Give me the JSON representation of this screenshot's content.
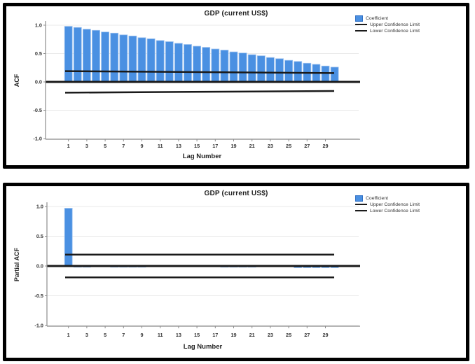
{
  "colors": {
    "coefficient": "#4a90e2",
    "coefficient_edge": "#9dc2ef",
    "confidence_line": "#1a1a1a",
    "zero_line": "#1a1a1a",
    "grid": "#e9e9e9",
    "axis": "#8c8c8c",
    "tick_text": "#333333",
    "panel_border": "#000000"
  },
  "legend": {
    "items": [
      {
        "label": "Coefficient",
        "swatch": "square"
      },
      {
        "label": "Upper Confidence Limit",
        "swatch": "line"
      },
      {
        "label": "Lower Confidence Limit",
        "swatch": "line"
      }
    ]
  },
  "chart_data": [
    {
      "type": "bar",
      "title": "GDP (current US$)",
      "ylabel": "ACF",
      "xlabel": "Lag Number",
      "ylim": [
        -1.0,
        1.0
      ],
      "yticks": [
        "1.0",
        "0.5",
        "0.0",
        "-0.5",
        "-1.0"
      ],
      "xticks": [
        1,
        3,
        5,
        7,
        9,
        11,
        13,
        15,
        17,
        19,
        21,
        23,
        25,
        27,
        29
      ],
      "x": [
        1,
        2,
        3,
        4,
        5,
        6,
        7,
        8,
        9,
        10,
        11,
        12,
        13,
        14,
        15,
        16,
        17,
        18,
        19,
        20,
        21,
        22,
        23,
        24,
        25,
        26,
        27,
        28,
        29,
        30
      ],
      "values": [
        0.98,
        0.96,
        0.93,
        0.91,
        0.88,
        0.86,
        0.83,
        0.81,
        0.78,
        0.76,
        0.73,
        0.71,
        0.68,
        0.66,
        0.63,
        0.61,
        0.58,
        0.56,
        0.53,
        0.51,
        0.48,
        0.46,
        0.43,
        0.41,
        0.38,
        0.36,
        0.33,
        0.31,
        0.28,
        0.26
      ],
      "upper_confidence_limit": {
        "start": 0.19,
        "end": 0.155
      },
      "lower_confidence_limit": {
        "start": -0.19,
        "end": -0.16
      },
      "legend_position": "top-right",
      "grid": true
    },
    {
      "type": "bar",
      "title": "GDP (current US$)",
      "ylabel": "Partial ACF",
      "xlabel": "Lag Number",
      "ylim": [
        -1.0,
        1.0
      ],
      "yticks": [
        "1.0",
        "0.5",
        "0.0",
        "-0.5",
        "-1.0"
      ],
      "xticks": [
        1,
        3,
        5,
        7,
        9,
        11,
        13,
        15,
        17,
        19,
        21,
        23,
        25,
        27,
        29
      ],
      "x": [
        1,
        2,
        3,
        4,
        5,
        6,
        7,
        8,
        9,
        10,
        11,
        12,
        13,
        14,
        15,
        16,
        17,
        18,
        19,
        20,
        21,
        22,
        23,
        24,
        25,
        26,
        27,
        28,
        29,
        30
      ],
      "values": [
        0.97,
        -0.02,
        -0.02,
        -0.01,
        -0.01,
        -0.02,
        -0.02,
        -0.02,
        -0.02,
        0,
        0,
        0,
        0,
        0,
        0,
        0,
        0,
        -0.02,
        -0.02,
        -0.02,
        -0.02,
        0,
        0,
        0,
        0,
        -0.03,
        -0.03,
        -0.03,
        -0.03,
        -0.03
      ],
      "upper_confidence_limit": {
        "start": 0.19,
        "end": 0.19
      },
      "lower_confidence_limit": {
        "start": -0.19,
        "end": -0.19
      },
      "legend_position": "top-right",
      "grid": true
    }
  ]
}
